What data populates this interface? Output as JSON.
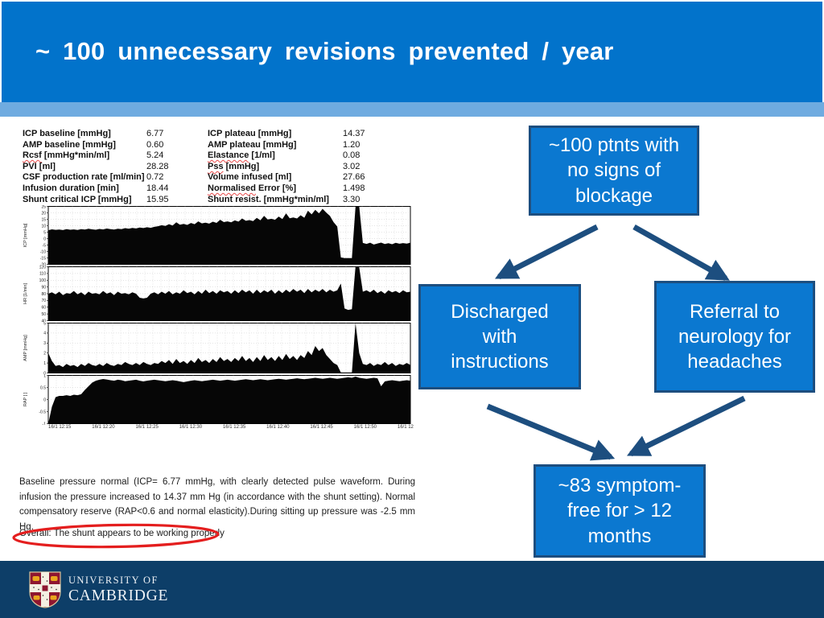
{
  "slide": {
    "title": "~ 100 unnecessary revisions prevented / year",
    "colors": {
      "header_blue": "#0273cb",
      "accent_stripe_blue": "#6fabe0",
      "box_fill_blue": "#0b78d0",
      "box_border_navy": "#1d4e7f",
      "arrow_navy": "#1d4e7f",
      "footer_navy": "#0d3e68",
      "annotation_red": "#e41e1e"
    }
  },
  "report": {
    "params_left": [
      {
        "label_wavy": "",
        "label_rest": "ICP baseline [mmHg]",
        "value": "6.77"
      },
      {
        "label_wavy": "",
        "label_rest": "AMP baseline [mmHg]",
        "value": "0.60"
      },
      {
        "label_wavy": "Rcsf",
        "label_rest": " [mmHg*min/ml]",
        "value": "5.24"
      },
      {
        "label_wavy": "",
        "label_rest": "PVI [ml]",
        "value": "28.28"
      },
      {
        "label_wavy": "",
        "label_rest": "CSF production rate [ml/min]",
        "value": "0.72"
      },
      {
        "label_wavy": "",
        "label_rest": "Infusion duration [min]",
        "value": "18.44"
      },
      {
        "label_wavy": "",
        "label_rest": "Shunt critical ICP [mmHg]",
        "value": "15.95"
      }
    ],
    "params_right": [
      {
        "label_wavy": "",
        "label_rest": "ICP plateau [mmHg]",
        "value": "14.37"
      },
      {
        "label_wavy": "",
        "label_rest": "AMP plateau [mmHg]",
        "value": "1.20"
      },
      {
        "label_wavy": "Elastance",
        "label_rest": " [1/ml]",
        "value": "0.08"
      },
      {
        "label_wavy": "Pss",
        "label_rest": " [mmHg]",
        "value": "3.02"
      },
      {
        "label_wavy": "",
        "label_rest": "Volume infused [ml]",
        "value": "27.66"
      },
      {
        "label_wavy": "Normalised",
        "label_rest": " Error [%]",
        "value": "1.498"
      },
      {
        "label_wavy": "",
        "label_rest": "Shunt resist. [mmHg*min/ml]",
        "value": "3.30"
      }
    ],
    "charts": [
      {
        "type": "area",
        "ylabel": "ICP [mmHg]",
        "ymin": -20,
        "ymax": 25,
        "yticks": [
          25,
          20,
          15,
          10,
          5,
          0,
          -5,
          -10,
          -15,
          -20
        ],
        "values": [
          6.5,
          7.2,
          6.8,
          7.0,
          6.6,
          7.4,
          6.9,
          7.1,
          6.7,
          7.3,
          7.0,
          7.6,
          7.2,
          6.9,
          7.5,
          7.1,
          7.8,
          7.3,
          7.0,
          7.6,
          7.4,
          8.1,
          7.7,
          8.3,
          7.9,
          8.6,
          8.2,
          8.8,
          8.4,
          9.1,
          9.6,
          10.4,
          9.8,
          11.2,
          10.2,
          12.6,
          10.8,
          11.4,
          10.6,
          12.1,
          11.2,
          13.4,
          11.8,
          12.4,
          11.6,
          13.1,
          12.2,
          14.6,
          12.8,
          13.4,
          12.6,
          14.1,
          13.2,
          15.6,
          13.8,
          14.4,
          13.6,
          16.1,
          14.2,
          17.6,
          14.8,
          15.4,
          14.6,
          17.1,
          15.2,
          19.6,
          15.8,
          16.4,
          15.6,
          18.1,
          16.2,
          21.6,
          18.8,
          22.4,
          19.6,
          23.1,
          20.2,
          17.6,
          12.8,
          9.4,
          -14.6,
          -15.1,
          -15.2,
          -15.1,
          24.6,
          25.0,
          -3.4,
          -4.1,
          -3.2,
          -4.6,
          -3.8,
          -3.1,
          -4.2,
          -3.6,
          -4.4,
          -3.3,
          -4.0,
          -3.5,
          -3.9,
          -3.2
        ]
      },
      {
        "type": "area",
        "ylabel": "HR [1/min]",
        "ymin": 40,
        "ymax": 120,
        "yticks": [
          120,
          110,
          100,
          90,
          80,
          70,
          60,
          50,
          40
        ],
        "values": [
          80,
          82,
          79,
          83,
          78,
          81,
          80,
          84,
          79,
          82,
          78,
          83,
          80,
          81,
          79,
          84,
          80,
          82,
          78,
          83,
          80,
          81,
          79,
          82,
          80,
          74,
          73,
          74,
          80,
          82,
          79,
          83,
          80,
          84,
          79,
          82,
          80,
          85,
          81,
          83,
          79,
          84,
          80,
          86,
          81,
          84,
          80,
          85,
          82,
          84,
          80,
          85,
          81,
          86,
          82,
          85,
          80,
          86,
          81,
          85,
          82,
          86,
          80,
          85,
          81,
          86,
          82,
          87,
          83,
          86,
          81,
          87,
          82,
          86,
          83,
          87,
          82,
          86,
          83,
          85,
          95,
          58,
          56,
          57,
          120,
          119,
          83,
          85,
          82,
          86,
          81,
          84,
          80,
          85,
          82,
          84,
          81,
          85,
          82,
          83
        ]
      },
      {
        "type": "area",
        "ylabel": "AMP [mmHg]",
        "ymin": 0,
        "ymax": 5,
        "yticks": [
          5,
          4,
          3,
          2,
          1,
          0
        ],
        "values": [
          2.0,
          1.2,
          0.7,
          0.8,
          0.6,
          0.9,
          0.7,
          0.8,
          0.6,
          0.9,
          0.7,
          1.0,
          0.8,
          0.7,
          0.9,
          0.7,
          1.0,
          0.8,
          0.7,
          0.9,
          0.8,
          1.1,
          0.9,
          0.8,
          1.0,
          0.8,
          1.1,
          0.9,
          0.8,
          1.0,
          0.9,
          1.2,
          1.0,
          1.3,
          0.9,
          1.4,
          1.0,
          1.2,
          0.9,
          1.3,
          1.0,
          1.5,
          1.1,
          1.3,
          1.0,
          1.4,
          1.1,
          1.6,
          1.2,
          1.4,
          1.1,
          1.5,
          1.2,
          1.7,
          1.2,
          1.5,
          1.1,
          1.6,
          1.2,
          1.8,
          1.3,
          1.6,
          1.2,
          1.7,
          1.3,
          1.9,
          1.4,
          1.7,
          1.3,
          1.8,
          1.5,
          2.2,
          1.8,
          2.7,
          2.2,
          2.5,
          1.8,
          1.4,
          1.0,
          0.8,
          0.05,
          0.05,
          0.05,
          0.05,
          5.0,
          2.0,
          0.9,
          0.8,
          1.0,
          0.7,
          0.9,
          0.8,
          1.1,
          0.8,
          1.0,
          0.7,
          0.9,
          0.8,
          1.0,
          0.8
        ]
      },
      {
        "type": "area",
        "ylabel": "RAP [ ]",
        "ymin": -1,
        "ymax": 1,
        "yticks": [
          1,
          0.5,
          0,
          -0.5,
          -1
        ],
        "values": [
          -1.0,
          -0.3,
          0.1,
          0.15,
          0.15,
          0.18,
          0.15,
          0.2,
          0.18,
          0.22,
          0.4,
          0.55,
          0.7,
          0.78,
          0.82,
          0.85,
          0.83,
          0.8,
          0.78,
          0.82,
          0.8,
          0.76,
          0.78,
          0.8,
          0.82,
          0.78,
          0.75,
          0.78,
          0.8,
          0.82,
          0.8,
          0.78,
          0.76,
          0.78,
          0.8,
          0.78,
          0.75,
          0.72,
          0.75,
          0.78,
          0.8,
          0.78,
          0.76,
          0.78,
          0.8,
          0.82,
          0.8,
          0.78,
          0.8,
          0.82,
          0.8,
          0.78,
          0.8,
          0.82,
          0.84,
          0.82,
          0.8,
          0.82,
          0.84,
          0.82,
          0.8,
          0.82,
          0.84,
          0.86,
          0.84,
          0.82,
          0.84,
          0.86,
          0.88,
          0.86,
          0.84,
          0.86,
          0.88,
          0.9,
          0.88,
          0.86,
          0.88,
          0.9,
          0.88,
          0.86,
          0.88,
          0.9,
          0.92,
          0.9,
          0.95,
          0.9,
          0.88,
          0.86,
          0.88,
          0.9,
          0.88,
          0.55,
          0.75,
          0.78,
          0.8,
          0.78,
          0.76,
          0.78,
          0.8,
          0.78
        ]
      }
    ],
    "xticks": [
      "16/1 12:15",
      "16/1 12:20",
      "16/1 12:25",
      "16/1 12:30",
      "16/1 12:35",
      "16/1 12:40",
      "16/1 12:45",
      "16/1 12:50",
      "16/1 12"
    ],
    "summary_paragraph": "Baseline pressure normal (ICP= 6.77 mmHg, with clearly detected pulse waveform. During infusion the pressure increased to 14.37 mm Hg (in accordance with the shunt setting).  Normal compensatory reserve (RAP<0.6 and normal elasticity).During sitting up pressure was -2.5 mm Hg.",
    "overall_line": "Overall: The shunt appears to be working properly"
  },
  "flowchart": {
    "top_box": "~100 ptnts with no signs of blockage",
    "left_box": "Discharged with instructions",
    "right_box": "Referral to neurology for headaches",
    "bottom_box": "~83 symptom-free for > 12 months"
  },
  "footer": {
    "line1": "UNIVERSITY OF",
    "line2": "CAMBRIDGE"
  }
}
